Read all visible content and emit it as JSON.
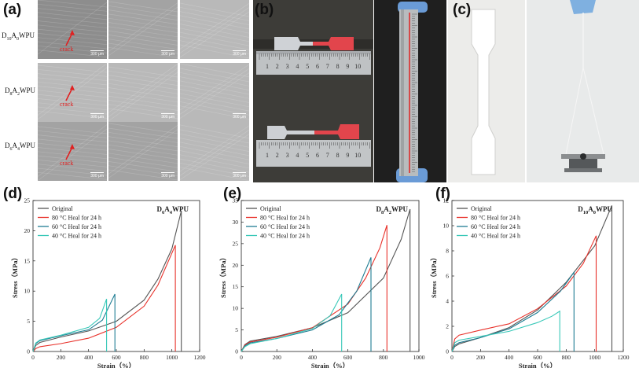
{
  "panels": {
    "a": {
      "label": "(a)",
      "rows": [
        "D10A0WPU",
        "D8A2WPU",
        "D6A4WPU"
      ],
      "crack_label": "crack",
      "scale_label": "300 μm"
    },
    "b": {
      "label": "(b)"
    },
    "c": {
      "label": "(c)"
    },
    "d": {
      "label": "(d)"
    },
    "e": {
      "label": "(e)"
    },
    "f": {
      "label": "(f)"
    }
  },
  "ruler": {
    "ticks": [
      "1",
      "2",
      "3",
      "4",
      "5",
      "6",
      "7",
      "8",
      "9",
      "10"
    ]
  },
  "legend_entries": [
    "Original",
    "80 °C Heal for 24 h",
    "60 °C Heal for 24 h",
    "40 °C Heal for 24 h"
  ],
  "colors": {
    "original": "#555555",
    "heal80": "#e8312a",
    "heal60": "#1f7d93",
    "heal40": "#38c8b8"
  },
  "chart_data": [
    {
      "type": "line",
      "title": "D6A4WPU",
      "xlabel": "Strain（%）",
      "ylabel": "Stress（MPa）",
      "xlim": [
        0,
        1200
      ],
      "ylim": [
        0,
        25
      ],
      "xticks": [
        0,
        200,
        400,
        600,
        800,
        1000,
        1200
      ],
      "yticks": [
        0,
        5,
        10,
        15,
        20,
        25
      ],
      "legend": "top-left",
      "series": [
        {
          "name": "Original",
          "x": [
            0,
            20,
            50,
            200,
            400,
            600,
            800,
            900,
            1000,
            1068,
            1068
          ],
          "y": [
            0,
            1,
            1.5,
            2.4,
            3.4,
            5,
            8.5,
            12,
            17,
            23.3,
            0
          ]
        },
        {
          "name": "80 °C Heal for 24 h",
          "x": [
            0,
            20,
            50,
            200,
            400,
            600,
            800,
            900,
            1025,
            1025
          ],
          "y": [
            0,
            0.5,
            0.8,
            1.3,
            2.2,
            4,
            7.5,
            11,
            17.6,
            0
          ]
        },
        {
          "name": "60 °C Heal for 24 h",
          "x": [
            0,
            20,
            50,
            200,
            400,
            500,
            590,
            590
          ],
          "y": [
            0,
            1.3,
            1.8,
            2.6,
            3.6,
            5.2,
            9.5,
            0
          ]
        },
        {
          "name": "40 °C Heal for 24 h",
          "x": [
            0,
            20,
            50,
            200,
            400,
            480,
            530,
            530
          ],
          "y": [
            0,
            1.4,
            1.9,
            2.7,
            4,
            5.5,
            8.7,
            0
          ]
        }
      ]
    },
    {
      "type": "line",
      "title": "D8A2WPU",
      "xlabel": "Strain（%）",
      "ylabel": "Stress（MPa）",
      "xlim": [
        0,
        1000
      ],
      "ylim": [
        0,
        35
      ],
      "xticks": [
        0,
        200,
        400,
        600,
        800,
        1000
      ],
      "yticks": [
        0,
        5,
        10,
        15,
        20,
        25,
        30,
        35
      ],
      "legend": "top-left",
      "series": [
        {
          "name": "Original",
          "x": [
            0,
            20,
            50,
            200,
            400,
            600,
            800,
            900,
            950,
            950
          ],
          "y": [
            0,
            1.6,
            2.4,
            3.5,
            5.5,
            9,
            17,
            26,
            33,
            0
          ]
        },
        {
          "name": "80 °C Heal for 24 h",
          "x": [
            0,
            20,
            50,
            200,
            400,
            600,
            700,
            780,
            820,
            820
          ],
          "y": [
            0,
            1.5,
            2.2,
            3.3,
            5.5,
            11,
            17,
            24,
            29.3,
            0
          ]
        },
        {
          "name": "60 °C Heal for 24 h",
          "x": [
            0,
            20,
            50,
            200,
            400,
            550,
            650,
            730,
            730
          ],
          "y": [
            0,
            1.3,
            2,
            3,
            5,
            8.5,
            14,
            21.8,
            0
          ]
        },
        {
          "name": "40 °C Heal for 24 h",
          "x": [
            0,
            20,
            50,
            200,
            400,
            500,
            565,
            565
          ],
          "y": [
            0,
            1.1,
            1.8,
            3,
            5.3,
            8.3,
            13.3,
            0
          ]
        }
      ]
    },
    {
      "type": "line",
      "title": "D10A0WPU",
      "xlabel": "Strain（%）",
      "ylabel": "Stress（MPa）",
      "xlim": [
        0,
        1200
      ],
      "ylim": [
        0,
        12
      ],
      "xticks": [
        0,
        200,
        400,
        600,
        800,
        1000,
        1200
      ],
      "yticks": [
        0,
        2,
        4,
        6,
        8,
        10,
        12
      ],
      "legend": "top-left",
      "series": [
        {
          "name": "Original",
          "x": [
            0,
            20,
            50,
            200,
            400,
            600,
            800,
            1000,
            1120,
            1120
          ],
          "y": [
            0,
            0.4,
            0.6,
            1.1,
            1.9,
            3.3,
            5.5,
            8.4,
            11.6,
            0
          ]
        },
        {
          "name": "80 °C Heal for 24 h",
          "x": [
            0,
            20,
            50,
            200,
            400,
            600,
            800,
            920,
            1010,
            1010
          ],
          "y": [
            0,
            1,
            1.3,
            1.7,
            2.2,
            3.4,
            5.2,
            7,
            9.2,
            0
          ]
        },
        {
          "name": "60 °C Heal for 24 h",
          "x": [
            0,
            20,
            50,
            200,
            400,
            600,
            760,
            855,
            855
          ],
          "y": [
            0,
            0.5,
            0.7,
            1.1,
            1.8,
            3.1,
            4.8,
            6.3,
            0
          ]
        },
        {
          "name": "40 °C Heal for 24 h",
          "x": [
            0,
            20,
            50,
            200,
            400,
            600,
            700,
            755,
            755
          ],
          "y": [
            0,
            0.7,
            0.9,
            1.2,
            1.6,
            2.3,
            2.8,
            3.2,
            0
          ]
        }
      ]
    }
  ]
}
